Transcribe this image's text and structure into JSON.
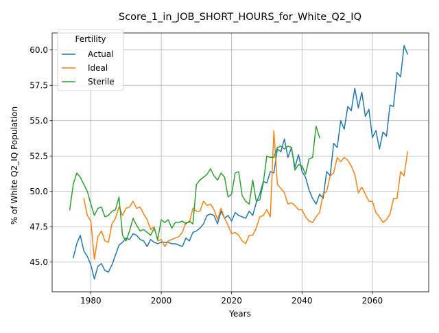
{
  "chart_data": {
    "type": "line",
    "title": "Score_1_in_JOB_SHORT_HOURS_for_White_Q2_IQ",
    "xlabel": "Years",
    "ylabel": "% of White Q2_IQ Population",
    "xlim": [
      1969,
      2076
    ],
    "ylim": [
      42.9,
      61.2
    ],
    "xticks": [
      1980,
      2000,
      2020,
      2040,
      2060
    ],
    "yticks": [
      45.0,
      47.5,
      50.0,
      52.5,
      55.0,
      57.5,
      60.0
    ],
    "xtick_labels": [
      "1980",
      "2000",
      "2020",
      "2040",
      "2060"
    ],
    "ytick_labels": [
      "45.0",
      "47.5",
      "50.0",
      "52.5",
      "55.0",
      "57.5",
      "60.0"
    ],
    "grid": true,
    "legend": {
      "title": "Fertility",
      "placement": "top-left"
    },
    "series": [
      {
        "name": "Actual",
        "color": "#1f77b4",
        "x": [
          1975,
          1976,
          1977,
          1978,
          1979,
          1980,
          1981,
          1982,
          1983,
          1984,
          1985,
          1986,
          1987,
          1988,
          1989,
          1990,
          1991,
          1992,
          1993,
          1994,
          1995,
          1996,
          1997,
          1998,
          1999,
          2000,
          2001,
          2002,
          2003,
          2004,
          2005,
          2006,
          2007,
          2008,
          2009,
          2010,
          2011,
          2012,
          2013,
          2014,
          2015,
          2016,
          2017,
          2018,
          2019,
          2020,
          2021,
          2022,
          2023,
          2024,
          2025,
          2026,
          2027,
          2028,
          2029,
          2030,
          2031,
          2032,
          2033,
          2034,
          2035,
          2036,
          2037,
          2038,
          2039,
          2040,
          2041,
          2042,
          2043,
          2044,
          2045,
          2046,
          2047,
          2048,
          2049,
          2050,
          2051,
          2052,
          2053,
          2054,
          2055,
          2056,
          2057,
          2058,
          2059,
          2060,
          2061,
          2062,
          2063,
          2064,
          2065,
          2066,
          2067,
          2068,
          2069,
          2070
        ],
        "values": [
          45.3,
          46.3,
          46.9,
          45.8,
          45.4,
          44.8,
          43.8,
          44.7,
          44.9,
          44.4,
          44.3,
          44.8,
          45.5,
          46.2,
          46.4,
          46.7,
          46.6,
          47.0,
          46.9,
          46.6,
          46.5,
          46.1,
          46.6,
          46.4,
          46.3,
          46.4,
          46.4,
          46.4,
          46.3,
          46.3,
          46.2,
          46.1,
          46.7,
          46.5,
          47.1,
          47.2,
          47.4,
          47.7,
          48.3,
          48.4,
          48.3,
          47.7,
          48.6,
          48.1,
          48.3,
          47.9,
          48.5,
          48.3,
          48.2,
          48.1,
          48.6,
          48.3,
          49.2,
          49.8,
          50.7,
          50.6,
          51.4,
          51.3,
          53.0,
          52.8,
          53.7,
          52.4,
          53.1,
          51.7,
          52.6,
          51.4,
          51.0,
          50.1,
          49.5,
          49.1,
          49.8,
          49.5,
          51.4,
          51.1,
          53.4,
          53.1,
          55.0,
          54.4,
          56.0,
          55.7,
          57.3,
          55.9,
          57.0,
          55.3,
          55.8,
          53.8,
          54.3,
          53.0,
          54.2,
          53.9,
          56.1,
          56.0,
          58.4,
          58.1,
          60.3,
          59.7
        ]
      },
      {
        "name": "Ideal",
        "color": "#ff7f0e",
        "x": [
          1978,
          1979,
          1980,
          1981,
          1982,
          1983,
          1984,
          1985,
          1986,
          1987,
          1988,
          1989,
          1990,
          1991,
          1992,
          1993,
          1994,
          1995,
          1996,
          1997,
          1998,
          1999,
          2000,
          2001,
          2002,
          2003,
          2004,
          2005,
          2006,
          2007,
          2008,
          2009,
          2010,
          2011,
          2012,
          2013,
          2014,
          2015,
          2016,
          2017,
          2018,
          2019,
          2020,
          2021,
          2022,
          2023,
          2024,
          2025,
          2026,
          2027,
          2028,
          2029,
          2030,
          2031,
          2032,
          2033,
          2034,
          2035,
          2036,
          2037,
          2038,
          2039,
          2040,
          2041,
          2042,
          2043,
          2044,
          2045,
          2046,
          2047,
          2048,
          2049,
          2050,
          2051,
          2052,
          2053,
          2054,
          2055,
          2056,
          2057,
          2058,
          2059,
          2060,
          2061,
          2062,
          2063,
          2064,
          2065,
          2066,
          2067,
          2068,
          2069,
          2070
        ],
        "values": [
          49.5,
          48.3,
          47.9,
          45.2,
          46.8,
          47.2,
          46.5,
          46.4,
          47.7,
          48.1,
          48.9,
          48.3,
          48.8,
          48.9,
          49.3,
          48.8,
          48.9,
          48.4,
          48.0,
          47.3,
          47.5,
          46.5,
          46.6,
          46.1,
          46.5,
          46.6,
          46.7,
          46.8,
          47.1,
          47.8,
          47.8,
          48.8,
          48.6,
          48.6,
          49.3,
          49.0,
          49.1,
          48.7,
          48.0,
          48.8,
          48.1,
          47.6,
          47.0,
          47.1,
          46.9,
          46.5,
          46.3,
          46.9,
          46.9,
          47.4,
          48.2,
          48.3,
          48.7,
          48.2,
          54.3,
          50.5,
          50.2,
          49.9,
          49.1,
          49.2,
          49.0,
          48.7,
          48.7,
          48.2,
          47.9,
          47.8,
          48.2,
          48.5,
          49.8,
          50.0,
          51.1,
          51.3,
          52.4,
          52.1,
          52.4,
          52.2,
          51.8,
          51.2,
          49.9,
          50.3,
          49.8,
          49.3,
          49.3,
          48.5,
          48.2,
          47.8,
          48.0,
          48.4,
          49.5,
          49.5,
          51.4,
          51.1,
          52.8
        ]
      },
      {
        "name": "Sterile",
        "color": "#2ca02c",
        "x": [
          1974,
          1975,
          1976,
          1977,
          1978,
          1979,
          1980,
          1981,
          1982,
          1983,
          1984,
          1985,
          1986,
          1987,
          1988,
          1989,
          1990,
          1991,
          1992,
          1993,
          1994,
          1995,
          1996,
          1997,
          1998,
          1999,
          2000,
          2001,
          2002,
          2003,
          2004,
          2005,
          2006,
          2007,
          2008,
          2009,
          2010,
          2011,
          2012,
          2013,
          2014,
          2015,
          2016,
          2017,
          2018,
          2019,
          2020,
          2021,
          2022,
          2023,
          2024,
          2025,
          2026,
          2027,
          2028,
          2029,
          2030,
          2031,
          2032,
          2033,
          2034,
          2035,
          2036,
          2037,
          2038,
          2039,
          2040,
          2041,
          2042,
          2043,
          2044,
          2045
        ],
        "values": [
          48.7,
          50.5,
          51.3,
          51.0,
          50.5,
          50.0,
          49.1,
          48.3,
          48.8,
          48.9,
          48.2,
          48.3,
          48.6,
          48.7,
          49.6,
          46.9,
          46.5,
          47.2,
          48.1,
          47.6,
          47.2,
          47.3,
          47.1,
          46.9,
          47.4,
          46.6,
          48.0,
          47.8,
          48.0,
          47.4,
          47.8,
          47.8,
          47.9,
          47.7,
          47.9,
          47.7,
          50.5,
          50.8,
          51.0,
          51.2,
          51.6,
          51.1,
          50.8,
          51.3,
          51.0,
          49.6,
          49.8,
          51.3,
          51.4,
          49.7,
          49.3,
          49.1,
          50.8,
          49.3,
          49.4,
          50.6,
          52.5,
          52.4,
          52.4,
          53.1,
          53.2,
          53.0,
          53.2,
          53.1,
          51.5,
          51.9,
          51.8,
          51.2,
          52.3,
          52.4,
          54.6,
          53.8
        ]
      }
    ]
  }
}
